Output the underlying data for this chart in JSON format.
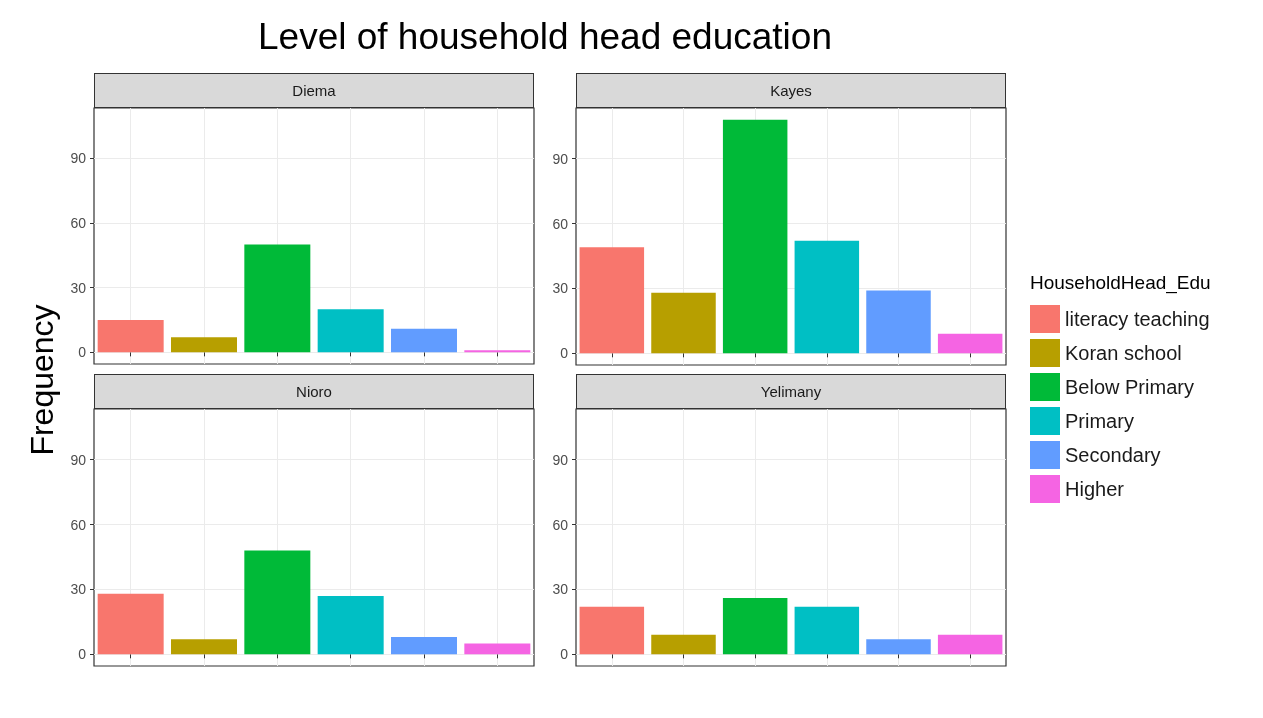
{
  "chart_data": [
    {
      "type": "bar",
      "title": "Level of household head education",
      "subtitle": "Diema",
      "ylabel": "Frequency",
      "stacked": true,
      "categories": [
        null,
        null,
        null,
        null,
        null,
        null
      ],
      "ylim": [
        -5.4,
        113.4
      ],
      "yticks": [
        0,
        30,
        60,
        90
      ],
      "grid": true,
      "series": [
        {
          "color": "#f8766d",
          "values": [
            15,
            null,
            null,
            null,
            null,
            null
          ]
        },
        {
          "color": "#b79f00",
          "values": [
            null,
            7,
            null,
            null,
            null,
            null
          ]
        },
        {
          "color": "#00ba38",
          "values": [
            null,
            null,
            50,
            null,
            null,
            null
          ]
        },
        {
          "color": "#00bfc4",
          "values": [
            null,
            null,
            null,
            20,
            null,
            null
          ]
        },
        {
          "color": "#619cff",
          "values": [
            null,
            null,
            null,
            null,
            11,
            null
          ]
        },
        {
          "color": "#f564e3",
          "values": [
            null,
            null,
            null,
            null,
            null,
            1
          ]
        }
      ]
    },
    {
      "type": "bar",
      "subtitle": "Kayes",
      "legend_title": "HouseholdHead_Edu",
      "legend": "right",
      "stacked": true,
      "categories": [
        null,
        null,
        null,
        null,
        null,
        null
      ],
      "ylim": [
        -5.4,
        113.4
      ],
      "yticks": [
        0,
        30,
        60,
        90
      ],
      "grid": true,
      "series": [
        {
          "name": "literacy teaching",
          "color": "#f8766d",
          "values": [
            49,
            null,
            null,
            null,
            null,
            null
          ]
        },
        {
          "name": "Koran school",
          "color": "#b79f00",
          "values": [
            null,
            28,
            null,
            null,
            null,
            null
          ]
        },
        {
          "name": "Below Primary",
          "color": "#00ba38",
          "values": [
            null,
            null,
            108,
            null,
            null,
            null
          ]
        },
        {
          "name": "Primary",
          "color": "#00bfc4",
          "values": [
            null,
            null,
            null,
            52,
            null,
            null
          ]
        },
        {
          "name": "Secondary",
          "color": "#619cff",
          "values": [
            null,
            null,
            null,
            null,
            29,
            null
          ]
        },
        {
          "name": "Higher",
          "color": "#f564e3",
          "values": [
            null,
            null,
            null,
            null,
            null,
            9
          ]
        }
      ]
    },
    {
      "type": "bar",
      "subtitle": "Nioro",
      "stacked": true,
      "categories": [
        null,
        null,
        null,
        null,
        null,
        null
      ],
      "ylim": [
        -5.4,
        113.4
      ],
      "yticks": [
        0,
        30,
        60,
        90
      ],
      "grid": true,
      "series": [
        {
          "color": "#f8766d",
          "values": [
            28,
            null,
            null,
            null,
            null,
            null
          ]
        },
        {
          "color": "#b79f00",
          "values": [
            null,
            7,
            null,
            null,
            null,
            null
          ]
        },
        {
          "color": "#00ba38",
          "values": [
            null,
            null,
            48,
            null,
            null,
            null
          ]
        },
        {
          "color": "#00bfc4",
          "values": [
            null,
            null,
            null,
            27,
            null,
            null
          ]
        },
        {
          "color": "#619cff",
          "values": [
            null,
            null,
            null,
            null,
            8,
            null
          ]
        },
        {
          "color": "#f564e3",
          "values": [
            null,
            null,
            null,
            null,
            null,
            5
          ]
        }
      ]
    },
    {
      "type": "bar",
      "subtitle": "Yelimany",
      "stacked": true,
      "categories": [
        null,
        null,
        null,
        null,
        null,
        null
      ],
      "ylim": [
        -5.4,
        113.4
      ],
      "yticks": [
        0,
        30,
        60,
        90
      ],
      "grid": true,
      "series": [
        {
          "color": "#f8766d",
          "values": [
            22,
            null,
            null,
            null,
            null,
            null
          ]
        },
        {
          "color": "#b79f00",
          "values": [
            null,
            9,
            null,
            null,
            null,
            null
          ]
        },
        {
          "color": "#00ba38",
          "values": [
            null,
            null,
            26,
            null,
            null,
            null
          ]
        },
        {
          "color": "#00bfc4",
          "values": [
            null,
            null,
            null,
            22,
            null,
            null
          ]
        },
        {
          "color": "#619cff",
          "values": [
            null,
            null,
            null,
            null,
            7,
            null
          ]
        },
        {
          "color": "#f564e3",
          "values": [
            null,
            null,
            null,
            null,
            null,
            9
          ]
        }
      ]
    }
  ]
}
